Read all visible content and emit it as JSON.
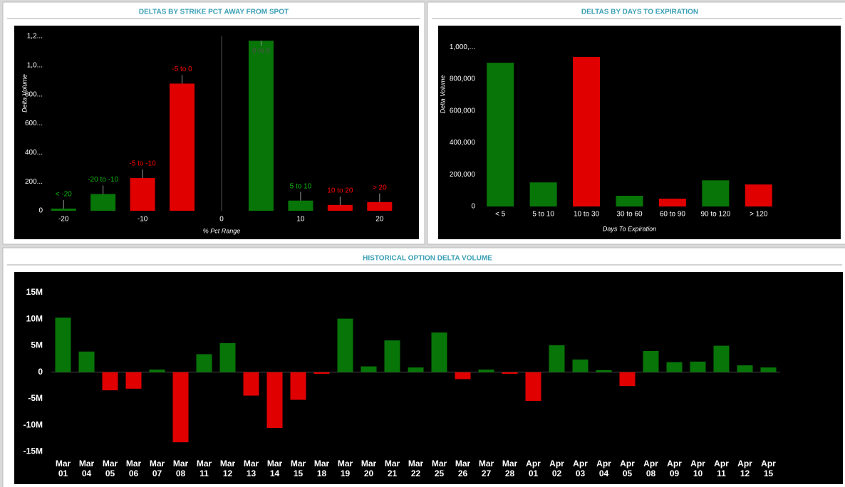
{
  "chart_data": [
    {
      "type": "bar",
      "title": "DELTAS BY STRIKE PCT AWAY FROM SPOT",
      "x_label": "% Pct Range",
      "y_label": "Delta Volume",
      "x": [
        -20,
        -15,
        -10,
        -5,
        5,
        10,
        15,
        20
      ],
      "bar_labels": [
        "< -20",
        "-20 to -10",
        "-5 to -10",
        "-5 to 0",
        "0 to 5",
        "5 to 10",
        "10 to 20",
        "> 20"
      ],
      "values": [
        15000,
        115000,
        225000,
        875000,
        1170000,
        70000,
        40000,
        60000
      ],
      "colors": [
        "#087508",
        "#087508",
        "#e00000",
        "#e00000",
        "#087508",
        "#087508",
        "#e00000",
        "#e00000"
      ],
      "xlim": [
        -22,
        22
      ],
      "xticks": [
        -20,
        -10,
        0,
        10,
        20
      ],
      "ylim": [
        0,
        1225000
      ],
      "yticks": [
        0,
        {
          "value": 200000,
          "label": "200..."
        },
        {
          "value": 400000,
          "label": "400..."
        },
        {
          "value": 600000,
          "label": "600..."
        },
        {
          "value": 800000,
          "label": "800..."
        },
        {
          "value": 1000000,
          "label": "1,0..."
        },
        {
          "value": 1200000,
          "label": "1,2..."
        }
      ]
    },
    {
      "type": "bar",
      "title": "DELTAS BY DAYS TO EXPIRATION",
      "x_label": "Days To Expiration",
      "y_label": "Delta Volume",
      "categories": [
        "< 5",
        "5 to 10",
        "10 to 30",
        "30 to 60",
        "60 to 90",
        "90 to 120",
        "> 120"
      ],
      "values": [
        902000,
        151000,
        938000,
        67000,
        49000,
        164000,
        138000
      ],
      "colors": [
        "#087508",
        "#087508",
        "#e00000",
        "#087508",
        "#e00000",
        "#087508",
        "#e00000"
      ],
      "ylim": [
        0,
        1050000
      ],
      "yticks": [
        0,
        {
          "value": 200000,
          "label": "200,000"
        },
        {
          "value": 400000,
          "label": "400,000"
        },
        {
          "value": 600000,
          "label": "600,000"
        },
        {
          "value": 800000,
          "label": "800,000"
        },
        {
          "value": 1000000,
          "label": "1,000,..."
        }
      ]
    },
    {
      "type": "bar",
      "title": "HISTORICAL OPTION DELTA VOLUME",
      "categories": [
        "Mar 01",
        "Mar 04",
        "Mar 05",
        "Mar 06",
        "Mar 07",
        "Mar 08",
        "Mar 11",
        "Mar 12",
        "Mar 13",
        "Mar 14",
        "Mar 15",
        "Mar 18",
        "Mar 19",
        "Mar 20",
        "Mar 21",
        "Mar 22",
        "Mar 25",
        "Mar 26",
        "Mar 27",
        "Mar 28",
        "Apr 01",
        "Apr 02",
        "Apr 03",
        "Apr 04",
        "Apr 05",
        "Apr 08",
        "Apr 09",
        "Apr 10",
        "Apr 11",
        "Apr 12",
        "Apr 15"
      ],
      "values": [
        10300000,
        3900000,
        -3400000,
        -3100000,
        500000,
        -13200000,
        3400000,
        5500000,
        -4400000,
        -10500000,
        -5200000,
        -300000,
        10100000,
        1100000,
        6000000,
        900000,
        7500000,
        -1300000,
        500000,
        -300000,
        -5400000,
        5100000,
        2400000,
        400000,
        -2600000,
        4000000,
        1900000,
        2000000,
        5000000,
        1300000,
        900000
      ],
      "positive_color": "#087508",
      "negative_color": "#e00000",
      "ylim": [
        -16000000,
        18500000
      ],
      "yticks": [
        {
          "value": -15000000,
          "label": "-15M"
        },
        {
          "value": -10000000,
          "label": "-10M"
        },
        {
          "value": -5000000,
          "label": "-5M"
        },
        0,
        {
          "value": 5000000,
          "label": "5M"
        },
        {
          "value": 10000000,
          "label": "10M"
        },
        {
          "value": 15000000,
          "label": "15M"
        }
      ]
    }
  ]
}
